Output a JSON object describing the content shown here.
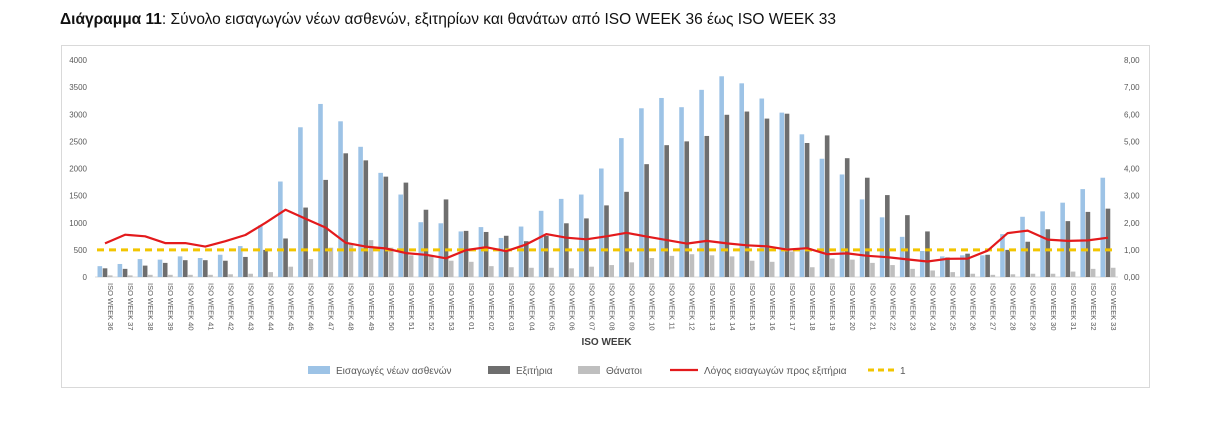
{
  "heading": {
    "label": "Διάγραμμα 11",
    "text": ": Σύνολο εισαγωγών νέων ασθενών, εξιτηρίων και θανάτων από ISO WEEK 36 έως ISO WEEK 33"
  },
  "colors": {
    "admissions": "#9dc3e6",
    "discharges": "#6e6e6e",
    "deaths": "#bfbfbf",
    "ratio": "#e31a1c",
    "reference": "#f2c500"
  },
  "chart_data": {
    "type": "bar",
    "xlabel": "ISO WEEK",
    "ylabel": "",
    "ylim": [
      0,
      4000
    ],
    "y2lim": [
      0,
      8
    ],
    "yticks": [
      "0",
      "500",
      "1000",
      "1500",
      "2000",
      "2500",
      "3000",
      "3500",
      "4000"
    ],
    "y2ticks": [
      "0,00",
      "1,00",
      "2,00",
      "3,00",
      "4,00",
      "5,00",
      "6,00",
      "7,00",
      "8,00"
    ],
    "categories": [
      "ISO WEEK 36",
      "ISO WEEK 37",
      "ISO WEEK 38",
      "ISO WEEK 39",
      "ISO WEEK 40",
      "ISO WEEK 41",
      "ISO WEEK 42",
      "ISO WEEK 43",
      "ISO WEEK 44",
      "ISO WEEK 45",
      "ISO WEEK 46",
      "ISO WEEK 47",
      "ISO WEEK 48",
      "ISO WEEK 49",
      "ISO WEEK 50",
      "ISO WEEK 51",
      "ISO WEEK 52",
      "ISO WEEK 53",
      "ISO WEEK 01",
      "ISO WEEK 02",
      "ISO WEEK 03",
      "ISO WEEK 04",
      "ISO WEEK 05",
      "ISO WEEK 06",
      "ISO WEEK 07",
      "ISO WEEK 08",
      "ISO WEEK 09",
      "ISO WEEK 10",
      "ISO WEEK 11",
      "ISO WEEK 12",
      "ISO WEEK 13",
      "ISO WEEK 14",
      "ISO WEEK 15",
      "ISO WEEK 16",
      "ISO WEEK 17",
      "ISO WEEK 18",
      "ISO WEEK 19",
      "ISO WEEK 20",
      "ISO WEEK 21",
      "ISO WEEK 22",
      "ISO WEEK 23",
      "ISO WEEK 24",
      "ISO WEEK 25",
      "ISO WEEK 26",
      "ISO WEEK 27",
      "ISO WEEK 28",
      "ISO WEEK 29",
      "ISO WEEK 30",
      "ISO WEEK 31",
      "ISO WEEK 32",
      "ISO WEEK 33"
    ],
    "series": [
      {
        "name": "Εισαγωγές νέων ασθενών",
        "type": "bar",
        "axis": "left",
        "values": [
          200,
          240,
          330,
          320,
          380,
          350,
          410,
          570,
          950,
          1760,
          2760,
          3190,
          2870,
          2400,
          1920,
          1520,
          1010,
          990,
          840,
          920,
          720,
          930,
          1220,
          1440,
          1520,
          2000,
          2560,
          3110,
          3300,
          3130,
          3450,
          3700,
          3570,
          3290,
          3030,
          2630,
          2180,
          1890,
          1430,
          1100,
          740,
          480,
          380,
          400,
          400,
          790,
          1110,
          1210,
          1370,
          1620,
          1830
        ]
      },
      {
        "name": "Εξιτήρια",
        "type": "bar",
        "axis": "left",
        "values": [
          160,
          150,
          210,
          260,
          310,
          310,
          300,
          370,
          500,
          710,
          1280,
          1790,
          2280,
          2150,
          1850,
          1740,
          1240,
          1430,
          850,
          830,
          760,
          660,
          760,
          990,
          1080,
          1320,
          1570,
          2080,
          2430,
          2500,
          2600,
          2990,
          3050,
          2920,
          3010,
          2470,
          2610,
          2190,
          1830,
          1510,
          1140,
          840,
          360,
          430,
          410,
          500,
          650,
          880,
          1030,
          1200,
          1260
        ]
      },
      {
        "name": "Θάνατοι",
        "type": "bar",
        "axis": "left",
        "values": [
          30,
          30,
          40,
          40,
          40,
          40,
          50,
          60,
          90,
          190,
          330,
          540,
          600,
          680,
          540,
          400,
          380,
          300,
          280,
          200,
          180,
          170,
          170,
          160,
          190,
          220,
          270,
          350,
          390,
          420,
          400,
          380,
          300,
          280,
          470,
          180,
          340,
          320,
          260,
          220,
          150,
          120,
          90,
          60,
          40,
          50,
          60,
          60,
          100,
          150,
          170
        ]
      },
      {
        "name": "Λόγος εισαγωγών προς εξιτήρια",
        "type": "line",
        "axis": "right",
        "values": [
          1.24,
          1.56,
          1.5,
          1.25,
          1.25,
          1.12,
          1.32,
          1.55,
          2.0,
          2.48,
          2.15,
          1.82,
          1.26,
          1.12,
          1.05,
          0.88,
          0.82,
          0.69,
          0.99,
          1.1,
          0.95,
          1.2,
          1.58,
          1.45,
          1.39,
          1.5,
          1.63,
          1.49,
          1.36,
          1.23,
          1.33,
          1.24,
          1.17,
          1.13,
          1.01,
          1.06,
          0.84,
          0.87,
          0.78,
          0.73,
          0.65,
          0.57,
          0.67,
          0.68,
          0.97,
          1.62,
          1.71,
          1.38,
          1.33,
          1.35,
          1.45
        ]
      },
      {
        "name": "1",
        "type": "line",
        "axis": "right",
        "style": "dashed",
        "constant": 1
      }
    ],
    "legend_position": "bottom"
  }
}
